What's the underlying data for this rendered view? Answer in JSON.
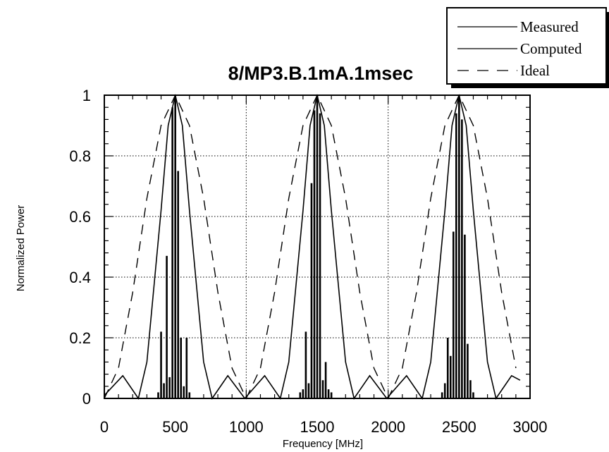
{
  "chart_data": {
    "type": "line",
    "title": "8/MP3.B.1mA.1msec",
    "xlabel": "Frequency [MHz]",
    "ylabel": "Normalized Power",
    "xlim": [
      0,
      3000
    ],
    "ylim": [
      0,
      1
    ],
    "xticks": [
      0,
      500,
      1000,
      1500,
      2000,
      2500,
      3000
    ],
    "yticks": [
      0,
      0.2,
      0.4,
      0.6,
      0.8,
      1
    ],
    "ytick_labels": [
      "0",
      "0.2",
      "0.4",
      "0.6",
      "0.8",
      "1"
    ],
    "grid": true,
    "legend_position": "top-right",
    "legend": [
      {
        "label": "Measured",
        "style": "vertical-lines"
      },
      {
        "label": "Computed",
        "style": "solid"
      },
      {
        "label": "Ideal",
        "style": "dashed"
      }
    ],
    "series": [
      {
        "name": "Measured",
        "style": "stems",
        "x": [
          380,
          400,
          420,
          440,
          460,
          480,
          500,
          520,
          540,
          560,
          580,
          600,
          1380,
          1400,
          1420,
          1440,
          1460,
          1480,
          1500,
          1520,
          1540,
          1560,
          1580,
          1600,
          2380,
          2400,
          2420,
          2440,
          2460,
          2480,
          2500,
          2520,
          2540,
          2560,
          2580,
          2600
        ],
        "y": [
          0.02,
          0.22,
          0.05,
          0.47,
          0.07,
          0.96,
          1.0,
          0.75,
          0.2,
          0.04,
          0.2,
          0.02,
          0.02,
          0.03,
          0.22,
          0.05,
          0.71,
          0.95,
          1.0,
          0.94,
          0.06,
          0.12,
          0.03,
          0.02,
          0.02,
          0.05,
          0.2,
          0.14,
          0.55,
          0.94,
          1.0,
          0.92,
          0.54,
          0.18,
          0.06,
          0.02
        ]
      },
      {
        "name": "Computed",
        "style": "solid",
        "peaks": [
          500,
          1500,
          2500
        ],
        "x": [
          0,
          130,
          240,
          300,
          400,
          450,
          500,
          550,
          600,
          700,
          760,
          870,
          990,
          1130,
          1240,
          1300,
          1400,
          1450,
          1500,
          1550,
          1600,
          1700,
          1760,
          1870,
          1990,
          2130,
          2240,
          2300,
          2400,
          2450,
          2500,
          2550,
          2600,
          2700,
          2760,
          2870,
          2930
        ],
        "y": [
          0.01,
          0.075,
          0.0,
          0.12,
          0.62,
          0.9,
          1.0,
          0.9,
          0.62,
          0.12,
          0.0,
          0.075,
          0.0,
          0.075,
          0.0,
          0.12,
          0.62,
          0.9,
          1.0,
          0.9,
          0.62,
          0.12,
          0.0,
          0.075,
          0.0,
          0.075,
          0.0,
          0.12,
          0.62,
          0.9,
          1.0,
          0.9,
          0.62,
          0.12,
          0.0,
          0.075,
          0.06
        ]
      },
      {
        "name": "Ideal",
        "style": "dashed",
        "peaks": [
          500,
          1500,
          2500
        ],
        "x": [
          0,
          100,
          200,
          300,
          400,
          500,
          600,
          700,
          800,
          900,
          1000,
          1100,
          1200,
          1300,
          1400,
          1500,
          1600,
          1700,
          1800,
          1900,
          2000,
          2100,
          2200,
          2300,
          2400,
          2500,
          2600,
          2700,
          2800,
          2900
        ],
        "y": [
          0.0,
          0.1,
          0.35,
          0.66,
          0.9,
          1.0,
          0.9,
          0.66,
          0.35,
          0.1,
          0.0,
          0.1,
          0.35,
          0.66,
          0.9,
          1.0,
          0.9,
          0.66,
          0.35,
          0.1,
          0.0,
          0.1,
          0.35,
          0.66,
          0.9,
          1.0,
          0.9,
          0.66,
          0.35,
          0.1
        ]
      }
    ]
  }
}
